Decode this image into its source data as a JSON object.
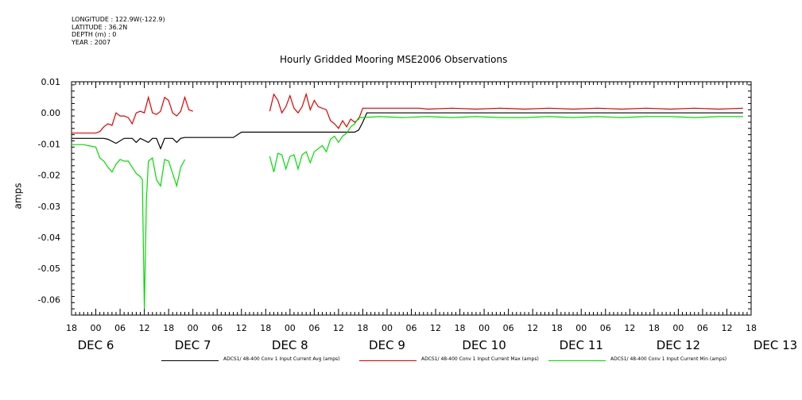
{
  "meta": {
    "longitude": "LONGITUDE : 122.9W(-122.9)",
    "latitude": "LATITUDE : 36.2N",
    "depth": "DEPTH (m) : 0",
    "year": "YEAR : 2007"
  },
  "colors": {
    "avg": "#000000",
    "max": "#e00000",
    "min": "#00dd00",
    "axis": "#000000"
  },
  "chart_data": {
    "type": "line",
    "title": "Hourly Gridded Mooring MSE2006 Observations",
    "ylabel": "amps",
    "xlabel": "",
    "ylim": [
      -0.065,
      0.01
    ],
    "yticks": [
      0.01,
      0.0,
      -0.01,
      -0.02,
      -0.03,
      -0.04,
      -0.05,
      -0.06
    ],
    "ytick_labels": [
      "0.01",
      "0.00",
      "-0.01",
      "-0.02",
      "-0.03",
      "-0.04",
      "-0.05",
      "-0.06"
    ],
    "x_unit": "hours since DEC 6 00:00",
    "xlim": [
      -6,
      162
    ],
    "xticks_hour_labels": [
      "18",
      "00",
      "06",
      "12",
      "18",
      "00",
      "06",
      "12",
      "18",
      "00",
      "06",
      "12",
      "18",
      "00",
      "06",
      "12",
      "18",
      "00",
      "06",
      "12",
      "18",
      "00",
      "06",
      "12",
      "18",
      "00",
      "06",
      "12",
      "18"
    ],
    "xticks_day_labels": [
      "DEC  6",
      "DEC  7",
      "DEC  8",
      "DEC  9",
      "DEC 10",
      "DEC 11",
      "DEC 12",
      "DEC 13"
    ],
    "grid": false,
    "legend_position": "bottom",
    "series": [
      {
        "name": "ADCS1/ 48-400 Conv 1 Input Current  Avg (amps)",
        "color_key": "avg",
        "points": [
          [
            -6,
            -0.0082
          ],
          [
            2,
            -0.0082
          ],
          [
            3,
            -0.0085
          ],
          [
            5,
            -0.0098
          ],
          [
            7,
            -0.0082
          ],
          [
            9,
            -0.0082
          ],
          [
            10,
            -0.0095
          ],
          [
            11,
            -0.0082
          ],
          [
            13,
            -0.0095
          ],
          [
            14,
            -0.0082
          ],
          [
            15,
            -0.0082
          ],
          [
            16,
            -0.0115
          ],
          [
            17,
            -0.0082
          ],
          [
            19,
            -0.0082
          ],
          [
            20,
            -0.0095
          ],
          [
            21,
            -0.0082
          ],
          [
            22,
            -0.0079
          ],
          [
            34,
            -0.0079
          ],
          [
            36,
            -0.0062
          ],
          [
            64,
            -0.0062
          ],
          [
            65,
            -0.0055
          ],
          [
            66,
            -0.003
          ],
          [
            67,
            0.0
          ],
          [
            160,
            0.0
          ]
        ]
      },
      {
        "name": "ADCS1/ 48-400 Conv 1 Input Current  Max (amps)",
        "color_key": "max",
        "segments": [
          [
            [
              -6,
              -0.0065
            ],
            [
              0,
              -0.0065
            ],
            [
              1,
              -0.006
            ],
            [
              2,
              -0.0045
            ],
            [
              3,
              -0.0035
            ],
            [
              4,
              -0.004
            ],
            [
              5,
              0.0
            ],
            [
              6,
              -0.001
            ],
            [
              7,
              -0.001
            ],
            [
              8,
              -0.0015
            ],
            [
              9,
              -0.0035
            ],
            [
              10,
              0.0
            ],
            [
              11,
              0.0005
            ],
            [
              12,
              0.0
            ],
            [
              13,
              0.005
            ],
            [
              14,
              0.0
            ],
            [
              15,
              -0.0005
            ],
            [
              16,
              0.0005
            ],
            [
              17,
              0.005
            ],
            [
              18,
              0.004
            ],
            [
              19,
              0.0
            ],
            [
              20,
              -0.001
            ],
            [
              21,
              0.0005
            ],
            [
              22,
              0.005
            ],
            [
              23,
              0.001
            ],
            [
              24,
              0.0005
            ]
          ],
          [
            [
              43,
              0.0005
            ],
            [
              44,
              0.006
            ],
            [
              45,
              0.004
            ],
            [
              46,
              0.0
            ],
            [
              47,
              0.002
            ],
            [
              48,
              0.0055
            ],
            [
              49,
              0.0015
            ],
            [
              50,
              0.0
            ],
            [
              51,
              0.002
            ],
            [
              52,
              0.006
            ],
            [
              53,
              0.001
            ],
            [
              54,
              0.004
            ],
            [
              55,
              0.002
            ],
            [
              57,
              0.001
            ],
            [
              58,
              -0.0025
            ],
            [
              59,
              -0.0035
            ],
            [
              60,
              -0.005
            ],
            [
              61,
              -0.0025
            ],
            [
              62,
              -0.0045
            ],
            [
              63,
              -0.002
            ],
            [
              64,
              -0.003
            ],
            [
              65,
              -0.002
            ],
            [
              66,
              0.0015
            ],
            [
              80,
              0.0015
            ],
            [
              82,
              0.0012
            ],
            [
              88,
              0.0015
            ],
            [
              94,
              0.0012
            ],
            [
              100,
              0.0015
            ],
            [
              106,
              0.0012
            ],
            [
              112,
              0.0015
            ],
            [
              118,
              0.0012
            ],
            [
              124,
              0.0015
            ],
            [
              130,
              0.0012
            ],
            [
              136,
              0.0015
            ],
            [
              142,
              0.0012
            ],
            [
              148,
              0.0015
            ],
            [
              154,
              0.0012
            ],
            [
              160,
              0.0015
            ]
          ]
        ]
      },
      {
        "name": "ADCS1/ 48-400 Conv 1 Input Current  Min (amps)",
        "color_key": "min",
        "segments": [
          [
            [
              -6,
              -0.0102
            ],
            [
              -3,
              -0.0102
            ],
            [
              -2,
              -0.0105
            ],
            [
              0,
              -0.011
            ],
            [
              1,
              -0.0145
            ],
            [
              2,
              -0.0155
            ],
            [
              3,
              -0.0175
            ],
            [
              4,
              -0.019
            ],
            [
              5,
              -0.0165
            ],
            [
              6,
              -0.015
            ],
            [
              7,
              -0.0155
            ],
            [
              8,
              -0.0155
            ],
            [
              9,
              -0.0175
            ],
            [
              10,
              -0.0195
            ],
            [
              11,
              -0.0205
            ],
            [
              11.5,
              -0.0215
            ],
            [
              12,
              -0.063
            ],
            [
              12.5,
              -0.028
            ],
            [
              13,
              -0.0155
            ],
            [
              14,
              -0.0145
            ],
            [
              15,
              -0.0215
            ],
            [
              16,
              -0.0235
            ],
            [
              17,
              -0.015
            ],
            [
              18,
              -0.0155
            ],
            [
              19,
              -0.0195
            ],
            [
              20,
              -0.0235
            ],
            [
              21,
              -0.0175
            ],
            [
              22,
              -0.015
            ]
          ],
          [
            [
              43,
              -0.014
            ],
            [
              44,
              -0.019
            ],
            [
              45,
              -0.013
            ],
            [
              46,
              -0.0135
            ],
            [
              47,
              -0.018
            ],
            [
              48,
              -0.014
            ],
            [
              49,
              -0.0135
            ],
            [
              50,
              -0.018
            ],
            [
              51,
              -0.0135
            ],
            [
              52,
              -0.0125
            ],
            [
              53,
              -0.016
            ],
            [
              54,
              -0.0125
            ],
            [
              55,
              -0.0115
            ],
            [
              56,
              -0.0105
            ],
            [
              57,
              -0.0125
            ],
            [
              58,
              -0.0085
            ],
            [
              59,
              -0.0075
            ],
            [
              60,
              -0.0095
            ],
            [
              61,
              -0.0075
            ],
            [
              62,
              -0.0065
            ],
            [
              63,
              -0.0045
            ],
            [
              64,
              -0.0035
            ],
            [
              65,
              -0.0015
            ],
            [
              66,
              -0.0015
            ],
            [
              70,
              -0.0012
            ],
            [
              76,
              -0.0015
            ],
            [
              82,
              -0.0012
            ],
            [
              88,
              -0.0015
            ],
            [
              94,
              -0.0012
            ],
            [
              100,
              -0.0015
            ],
            [
              106,
              -0.0015
            ],
            [
              112,
              -0.0012
            ],
            [
              118,
              -0.0015
            ],
            [
              124,
              -0.0012
            ],
            [
              130,
              -0.0015
            ],
            [
              136,
              -0.0012
            ],
            [
              142,
              -0.0012
            ],
            [
              148,
              -0.0015
            ],
            [
              154,
              -0.0012
            ],
            [
              160,
              -0.0012
            ]
          ]
        ]
      }
    ]
  }
}
